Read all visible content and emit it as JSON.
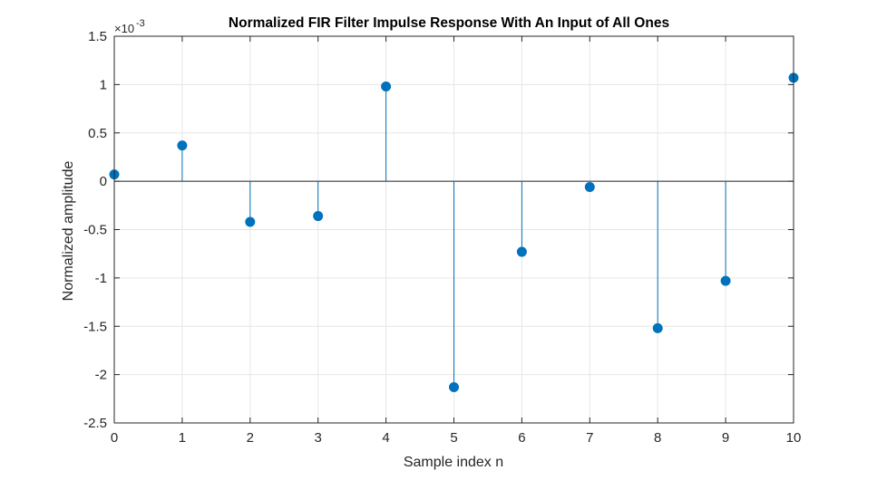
{
  "chart_data": {
    "type": "stem",
    "title": "Normalized FIR Filter Impulse Response With An Input of All Ones",
    "xlabel": "Sample index n",
    "ylabel": "Normalized amplitude",
    "y_exponent_base": "×10",
    "y_exponent_power": "-3",
    "xlim": [
      0,
      10
    ],
    "ylim": [
      -2.5,
      1.5
    ],
    "y_scale_note": "values shown in units of 1e-3",
    "x_ticks": [
      "0",
      "1",
      "2",
      "3",
      "4",
      "5",
      "6",
      "7",
      "8",
      "9",
      "10"
    ],
    "y_ticks": [
      "1.5",
      "1",
      "0.5",
      "0",
      "-0.5",
      "-1",
      "-1.5",
      "-2",
      "-2.5"
    ],
    "grid": true,
    "x": [
      0,
      1,
      2,
      3,
      4,
      5,
      6,
      7,
      8,
      9,
      10
    ],
    "values": [
      0.07,
      0.37,
      -0.42,
      -0.36,
      0.98,
      -2.13,
      -0.73,
      -0.06,
      -1.52,
      -1.03,
      1.07
    ],
    "colors": {
      "stem": "#0072BD",
      "grid": "#e6e6e6",
      "axis": "#262626",
      "zero_line": "#262626"
    }
  }
}
